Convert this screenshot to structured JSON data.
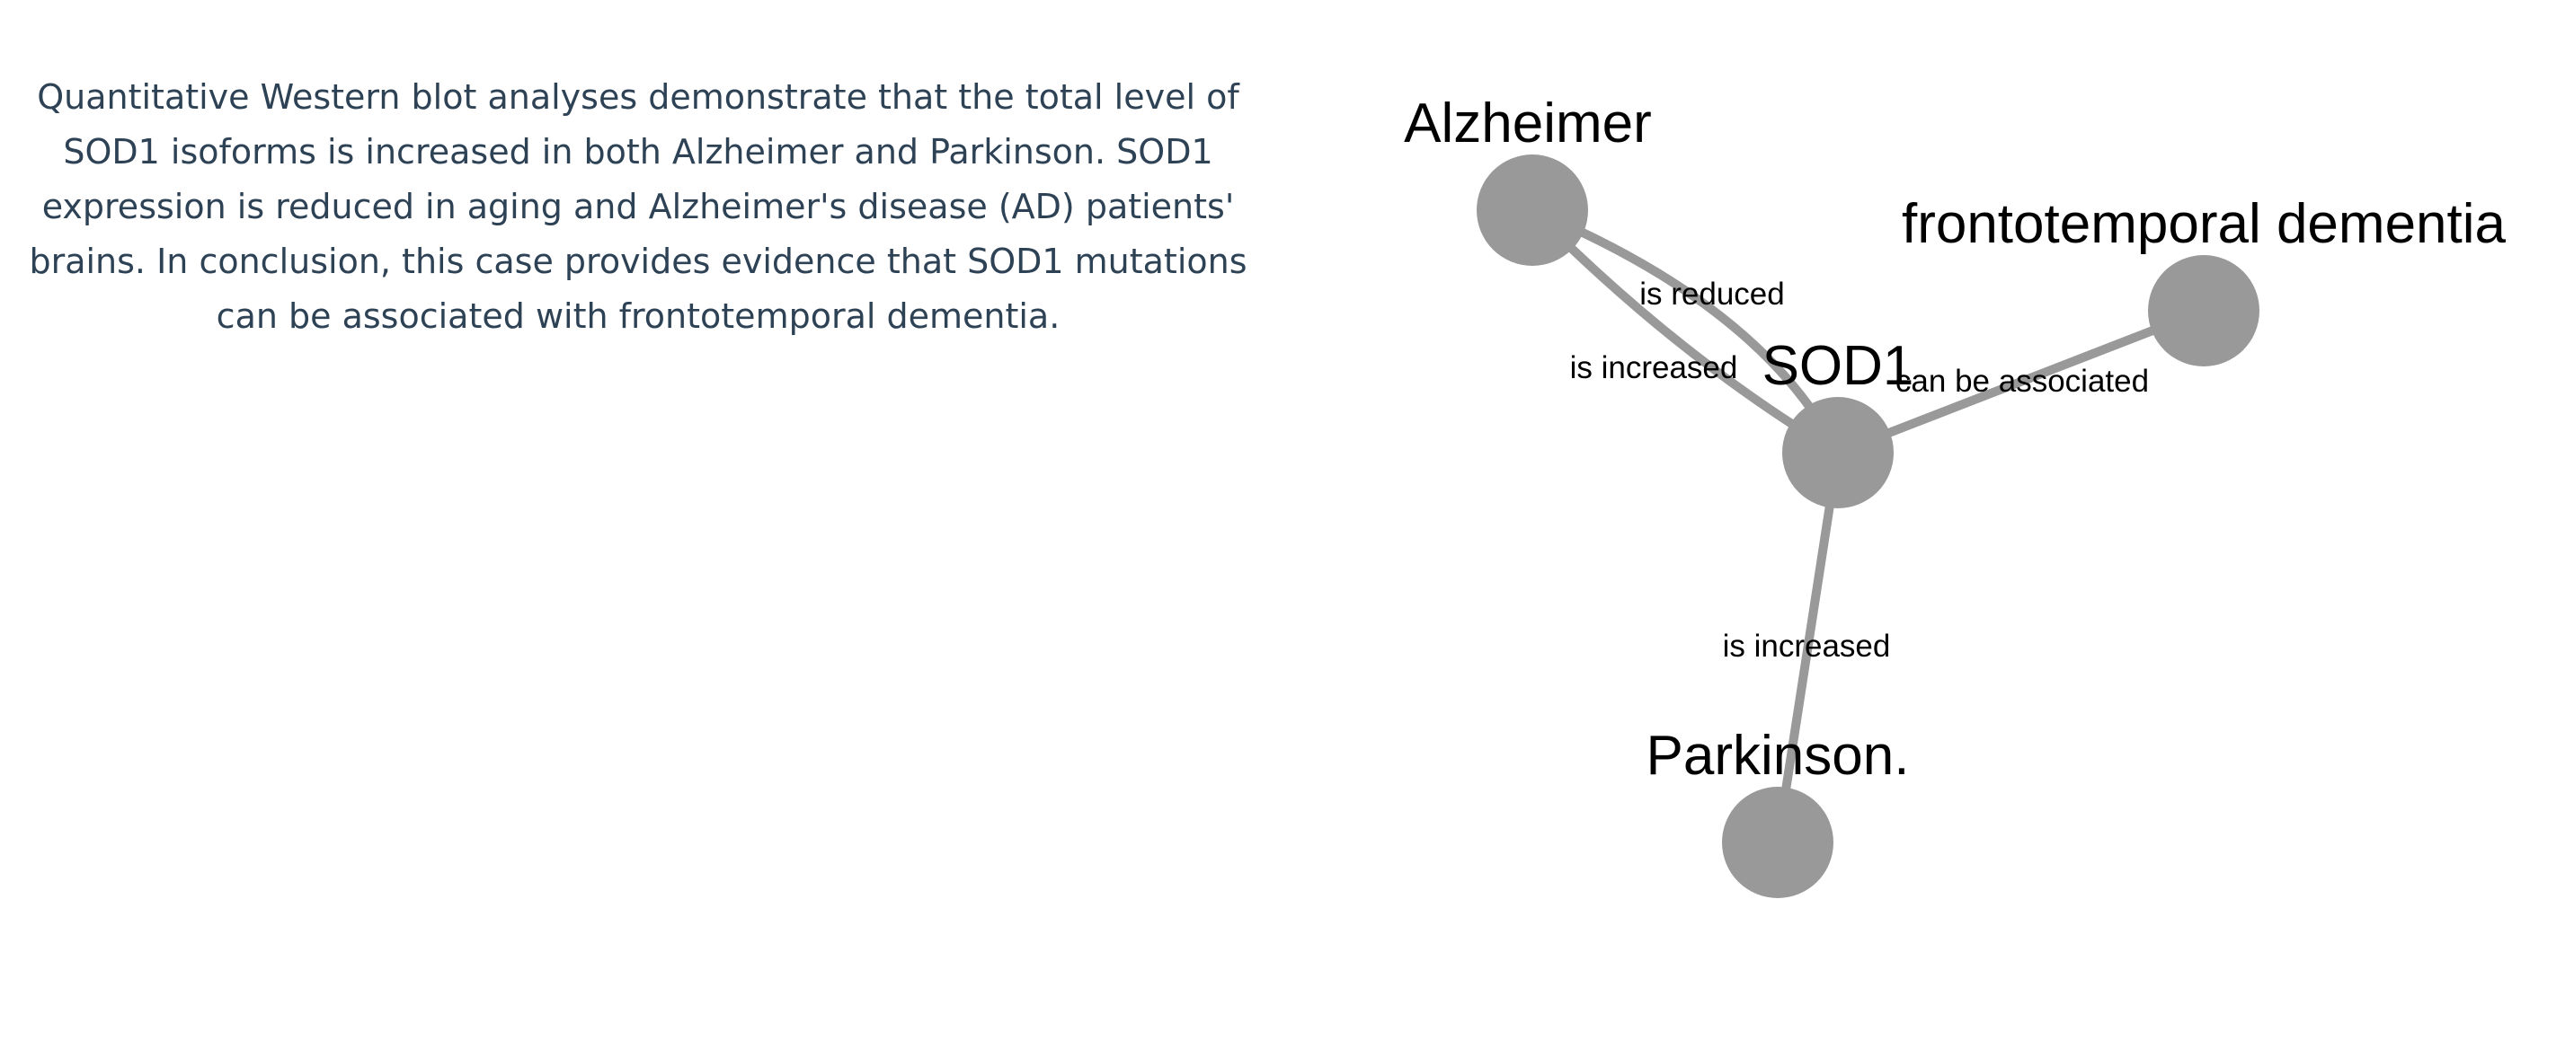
{
  "passage": {
    "lines": [
      "Quantitative Western blot analyses demonstrate that the total level of",
      "SOD1 isoforms is increased in both Alzheimer and Parkinson. SOD1",
      "expression is reduced in aging and Alzheimer's disease (AD) patients'",
      "brains. In conclusion, this case provides evidence that SOD1 mutations",
      "can be associated with frontotemporal dementia."
    ]
  },
  "graph": {
    "node_color": "#999999",
    "edge_color": "#999999",
    "nodes": [
      {
        "id": "alzheimer",
        "label": "Alzheimer"
      },
      {
        "id": "frontotemporal",
        "label": "frontotemporal dementia"
      },
      {
        "id": "sod1",
        "label": "SOD1"
      },
      {
        "id": "parkinson",
        "label": "Parkinson."
      }
    ],
    "edges": [
      {
        "id": "sod1-alzheimer-reduced",
        "source": "sod1",
        "target": "alzheimer",
        "label": "is reduced"
      },
      {
        "id": "sod1-alzheimer-increased",
        "source": "sod1",
        "target": "alzheimer",
        "label": "is increased"
      },
      {
        "id": "sod1-frontotemporal",
        "source": "sod1",
        "target": "frontotemporal",
        "label": "can be associated"
      },
      {
        "id": "sod1-parkinson",
        "source": "sod1",
        "target": "parkinson",
        "label": "is increased"
      }
    ]
  }
}
